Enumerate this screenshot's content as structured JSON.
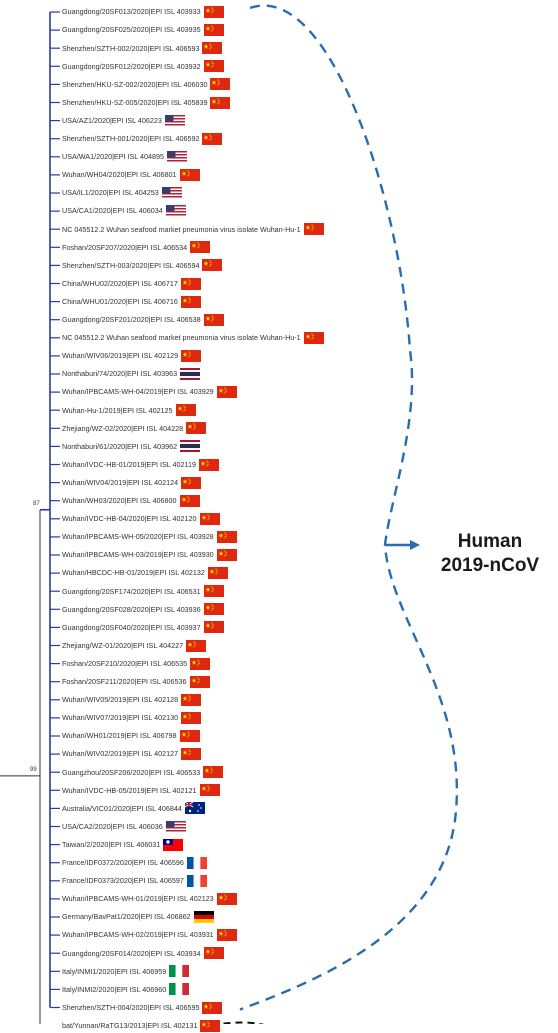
{
  "annotation": {
    "line1": "Human",
    "line2": "2019-nCoV"
  },
  "bootstrap": [
    "87",
    "99"
  ],
  "colors": {
    "tree": "#2a3aa8",
    "outgroup": "#333333",
    "bracket": "#2b6cb0"
  },
  "leaves": [
    {
      "label": "Guangdong/20SF013/2020|EPI ISL 403933",
      "flag": "china"
    },
    {
      "label": "Guangdong/20SF025/2020|EPI ISL 403935",
      "flag": "china"
    },
    {
      "label": "Shenzhen/SZTH-002/2020|EPI ISL 406593",
      "flag": "china"
    },
    {
      "label": "Guangdong/20SF012/2020|EPI ISL 403932",
      "flag": "china"
    },
    {
      "label": "Shenzhen/HKU-SZ-002/2020|EPI ISL 406030",
      "flag": "china"
    },
    {
      "label": "Shenzhen/HKU-SZ-005/2020|EPI ISL 405839",
      "flag": "china"
    },
    {
      "label": "USA/AZ1/2020|EPI ISL 406223",
      "flag": "usa"
    },
    {
      "label": "Shenzhen/SZTH-001/2020|EPI ISL 406592",
      "flag": "china"
    },
    {
      "label": "USA/WA1/2020|EPI ISL 404895",
      "flag": "usa"
    },
    {
      "label": "Wuhan/WH04/2020|EPI ISL 406801",
      "flag": "china"
    },
    {
      "label": "USA/IL1/2020|EPI ISL 404253",
      "flag": "usa"
    },
    {
      "label": "USA/CA1/2020|EPI ISL 406034",
      "flag": "usa"
    },
    {
      "label": "NC 045512.2 Wuhan seafood market pneumonia virus isolate Wuhan-Hu-1",
      "flag": "china"
    },
    {
      "label": "Foshan/20SF207/2020|EPI ISL 406534",
      "flag": "china"
    },
    {
      "label": "Shenzhen/SZTH-003/2020|EPI ISL 406594",
      "flag": "china"
    },
    {
      "label": "China/WHU02/2020|EPI ISL 406717",
      "flag": "china"
    },
    {
      "label": "China/WHU01/2020|EPI ISL 406716",
      "flag": "china"
    },
    {
      "label": "Guangdong/20SF201/2020|EPI ISL 406538",
      "flag": "china"
    },
    {
      "label": "NC 045512.2 Wuhan seafood market pneumonia virus isolate Wuhan-Hu-1",
      "flag": "china"
    },
    {
      "label": "Wuhan/WIV06/2019|EPI ISL 402129",
      "flag": "china"
    },
    {
      "label": "Nonthaburi/74/2020|EPI ISL 403963",
      "flag": "thailand"
    },
    {
      "label": "Wuhan/IPBCAMS-WH-04/2019|EPI ISL 403929",
      "flag": "china"
    },
    {
      "label": "Wuhan-Hu-1/2019|EPI ISL 402125",
      "flag": "china"
    },
    {
      "label": "Zhejiang/WZ-02/2020|EPI ISL 404228",
      "flag": "china"
    },
    {
      "label": "Nonthaburi/61/2020|EPI ISL 403962",
      "flag": "thailand"
    },
    {
      "label": "Wuhan/IVDC-HB-01/2019|EPI ISL 402119",
      "flag": "china"
    },
    {
      "label": "Wuhan/WIV04/2019|EPI ISL 402124",
      "flag": "china"
    },
    {
      "label": "Wuhan/WH03/2020|EPI ISL 406800",
      "flag": "china"
    },
    {
      "label": "Wuhan/IVDC-HB-04/2020|EPI ISL 402120",
      "flag": "china"
    },
    {
      "label": "Wuhan/IPBCAMS-WH-05/2020|EPI ISL 403928",
      "flag": "china"
    },
    {
      "label": "Wuhan/IPBCAMS-WH-03/2019|EPI ISL 403930",
      "flag": "china"
    },
    {
      "label": "Wuhan/HBCDC-HB-01/2019|EPI ISL 402132",
      "flag": "china"
    },
    {
      "label": "Guangdong/20SF174/2020|EPI ISL 406531",
      "flag": "china"
    },
    {
      "label": "Guangdong/20SF028/2020|EPI ISL 403936",
      "flag": "china"
    },
    {
      "label": "Guangdong/20SF040/2020|EPI ISL 403937",
      "flag": "china"
    },
    {
      "label": "Zhejiang/WZ-01/2020|EPI ISL 404227",
      "flag": "china"
    },
    {
      "label": "Foshan/20SF210/2020|EPI ISL 406535",
      "flag": "china"
    },
    {
      "label": "Foshan/20SF211/2020|EPI ISL 406536",
      "flag": "china"
    },
    {
      "label": "Wuhan/WIV05/2019|EPI ISL 402128",
      "flag": "china"
    },
    {
      "label": "Wuhan/WIV07/2019|EPI ISL 402130",
      "flag": "china"
    },
    {
      "label": "Wuhan/WH01/2019|EPI ISL 406798",
      "flag": "china"
    },
    {
      "label": "Wuhan/WIV02/2019|EPI ISL 402127",
      "flag": "china"
    },
    {
      "label": "Guangzhou/20SF206/2020|EPI ISL 406533",
      "flag": "china"
    },
    {
      "label": "Wuhan/IVDC-HB-05/2019|EPI ISL 402121",
      "flag": "china"
    },
    {
      "label": "Australia/VIC01/2020|EPI ISL 406844",
      "flag": "australia"
    },
    {
      "label": "USA/CA2/2020|EPI ISL 406036",
      "flag": "usa"
    },
    {
      "label": "Taiwan/2/2020|EPI ISL 406031",
      "flag": "taiwan"
    },
    {
      "label": "France/IDF0372/2020|EPI ISL 406596",
      "flag": "france"
    },
    {
      "label": "France/IDF0373/2020|EPI ISL 406597",
      "flag": "france"
    },
    {
      "label": "Wuhan/IPBCAMS-WH-01/2019|EPI ISL 402123",
      "flag": "china"
    },
    {
      "label": "Germany/BavPat1/2020|EPI ISL 406862",
      "flag": "germany"
    },
    {
      "label": "Wuhan/IPBCAMS-WH-02/2019|EPI ISL 403931",
      "flag": "china"
    },
    {
      "label": "Guangdong/20SF014/2020|EPI ISL 403934",
      "flag": "china"
    },
    {
      "label": "Italy/INMI1/2020|EPI ISL 406959",
      "flag": "italy"
    },
    {
      "label": "Italy/INMI2/2020|EPI ISL 406960",
      "flag": "italy"
    },
    {
      "label": "Shenzhen/SZTH-004/2020|EPI ISL 406595",
      "flag": "china"
    },
    {
      "label": "bat/Yunnan/RaTG13/2013|EPI ISL 402131",
      "flag": "china"
    }
  ]
}
